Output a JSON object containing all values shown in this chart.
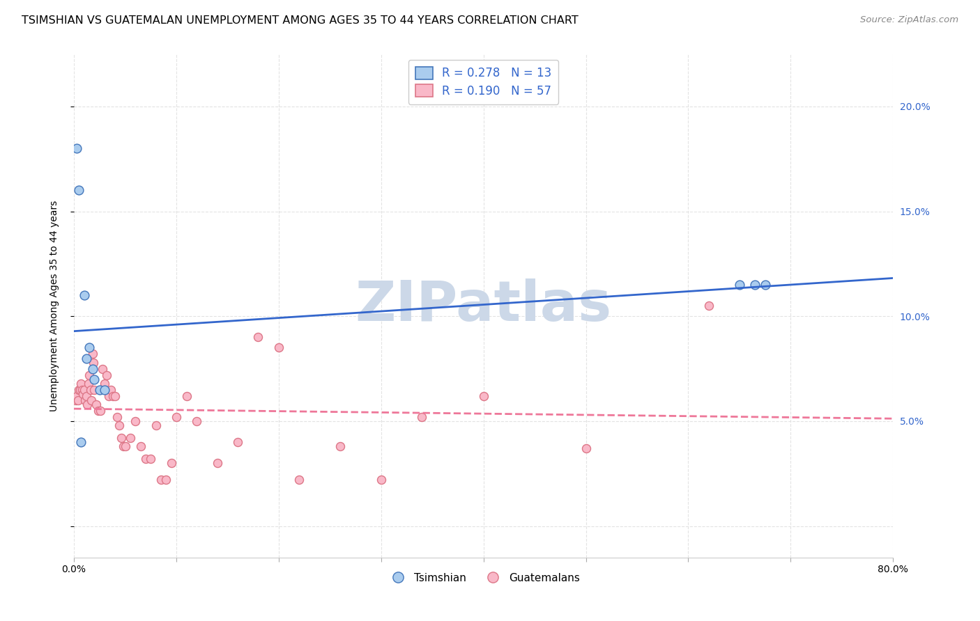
{
  "title": "TSIMSHIAN VS GUATEMALAN UNEMPLOYMENT AMONG AGES 35 TO 44 YEARS CORRELATION CHART",
  "source": "Source: ZipAtlas.com",
  "ylabel": "Unemployment Among Ages 35 to 44 years",
  "xlabel_ticks": [
    "0.0%",
    "",
    "",
    "",
    "",
    "",
    "",
    "",
    "80.0%"
  ],
  "xlabel_vals": [
    0.0,
    0.1,
    0.2,
    0.3,
    0.4,
    0.5,
    0.6,
    0.7,
    0.8
  ],
  "ytick_vals": [
    0.0,
    0.05,
    0.1,
    0.15,
    0.2
  ],
  "ytick_labels": [
    "",
    "5.0%",
    "10.0%",
    "15.0%",
    "20.0%"
  ],
  "xlim": [
    0.0,
    0.8
  ],
  "ylim": [
    -0.015,
    0.225
  ],
  "tsimshian_color": "#aaccee",
  "guatemalan_color": "#f9b8c8",
  "tsimshian_edge": "#4477bb",
  "guatemalan_edge": "#dd7788",
  "line_tsimshian_color": "#3366cc",
  "line_guatemalan_color": "#ee7799",
  "r_tsimshian": 0.278,
  "n_tsimshian": 13,
  "r_guatemalan": 0.19,
  "n_guatemalan": 57,
  "legend_label_tsimshian": "Tsimshian",
  "legend_label_guatemalan": "Guatemalans",
  "tsimshian_x": [
    0.003,
    0.005,
    0.007,
    0.01,
    0.012,
    0.015,
    0.018,
    0.02,
    0.025,
    0.03,
    0.65,
    0.665,
    0.675
  ],
  "tsimshian_y": [
    0.18,
    0.16,
    0.04,
    0.11,
    0.08,
    0.085,
    0.075,
    0.07,
    0.065,
    0.065,
    0.115,
    0.115,
    0.115
  ],
  "guatemalan_x": [
    0.002,
    0.003,
    0.004,
    0.005,
    0.006,
    0.007,
    0.008,
    0.009,
    0.01,
    0.011,
    0.012,
    0.013,
    0.014,
    0.015,
    0.016,
    0.017,
    0.018,
    0.019,
    0.02,
    0.022,
    0.024,
    0.026,
    0.028,
    0.03,
    0.032,
    0.034,
    0.036,
    0.038,
    0.04,
    0.042,
    0.044,
    0.046,
    0.048,
    0.05,
    0.055,
    0.06,
    0.065,
    0.07,
    0.075,
    0.08,
    0.085,
    0.09,
    0.095,
    0.1,
    0.11,
    0.12,
    0.14,
    0.16,
    0.18,
    0.2,
    0.22,
    0.26,
    0.3,
    0.34,
    0.4,
    0.5,
    0.62
  ],
  "guatemalan_y": [
    0.06,
    0.062,
    0.06,
    0.065,
    0.065,
    0.068,
    0.065,
    0.063,
    0.065,
    0.06,
    0.062,
    0.058,
    0.068,
    0.072,
    0.065,
    0.06,
    0.082,
    0.078,
    0.065,
    0.058,
    0.055,
    0.055,
    0.075,
    0.068,
    0.072,
    0.062,
    0.065,
    0.062,
    0.062,
    0.052,
    0.048,
    0.042,
    0.038,
    0.038,
    0.042,
    0.05,
    0.038,
    0.032,
    0.032,
    0.048,
    0.022,
    0.022,
    0.03,
    0.052,
    0.062,
    0.05,
    0.03,
    0.04,
    0.09,
    0.085,
    0.022,
    0.038,
    0.022,
    0.052,
    0.062,
    0.037,
    0.105
  ],
  "background_color": "#ffffff",
  "grid_color": "#e0e0e0",
  "watermark_text": "ZIPatlas",
  "watermark_color": "#ccd8e8",
  "title_fontsize": 11.5,
  "axis_label_fontsize": 10,
  "tick_label_fontsize": 10,
  "source_fontsize": 9.5,
  "legend_color": "#3366cc"
}
